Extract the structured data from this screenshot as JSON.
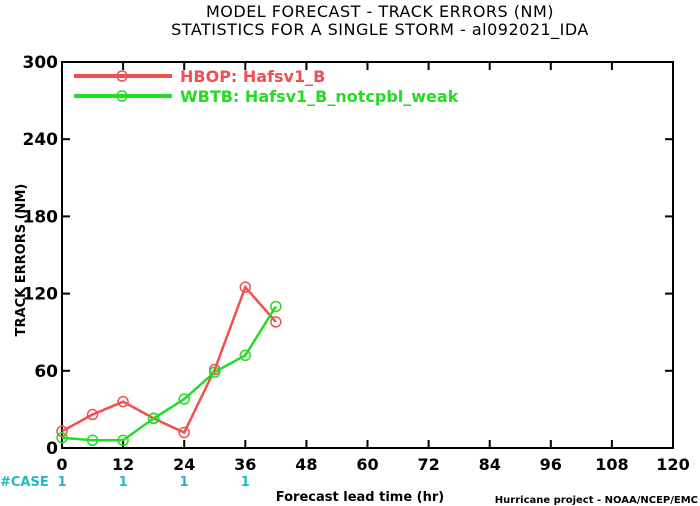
{
  "title_line1": "MODEL FORECAST - TRACK ERRORS (NM)",
  "title_line2": "STATISTICS FOR A SINGLE STORM - al092021_IDA",
  "case_label": "#CASE",
  "case_counts": [
    {
      "x": 0,
      "label": "1"
    },
    {
      "x": 12,
      "label": "1"
    },
    {
      "x": 24,
      "label": "1"
    },
    {
      "x": 36,
      "label": "1"
    }
  ],
  "credit": "Hurricane project - NOAA/NCEP/EMC",
  "colors": {
    "hbop": "#f05050",
    "wbtb": "#22dd22",
    "case": "#20b8c8"
  },
  "chart_data": {
    "type": "line",
    "title": "MODEL FORECAST - TRACK ERRORS (NM)",
    "subtitle": "STATISTICS FOR A SINGLE STORM - al092021_IDA",
    "xlabel": "Forecast lead time (hr)",
    "ylabel": "TRACK ERRORS (NM)",
    "xlim": [
      0,
      120
    ],
    "ylim": [
      0,
      300
    ],
    "xticks": [
      0,
      12,
      24,
      36,
      48,
      60,
      72,
      84,
      96,
      108,
      120
    ],
    "yticks": [
      0,
      60,
      120,
      180,
      240,
      300
    ],
    "ytick_labels": [
      "0",
      "60",
      "120",
      "180",
      "240",
      "300"
    ],
    "legend_position": "top-left",
    "grid": false,
    "series": [
      {
        "name": "HBOP: Hafsv1_B",
        "x": [
          0,
          6,
          12,
          18,
          24,
          30,
          36,
          42
        ],
        "y": [
          13,
          26,
          36,
          23,
          12,
          61,
          125,
          98
        ]
      },
      {
        "name": "WBTB: Hafsv1_B_notcpbl_weak",
        "x": [
          0,
          6,
          12,
          18,
          24,
          30,
          36,
          42
        ],
        "y": [
          8,
          6,
          6,
          23,
          38,
          59,
          72,
          110
        ]
      }
    ]
  }
}
